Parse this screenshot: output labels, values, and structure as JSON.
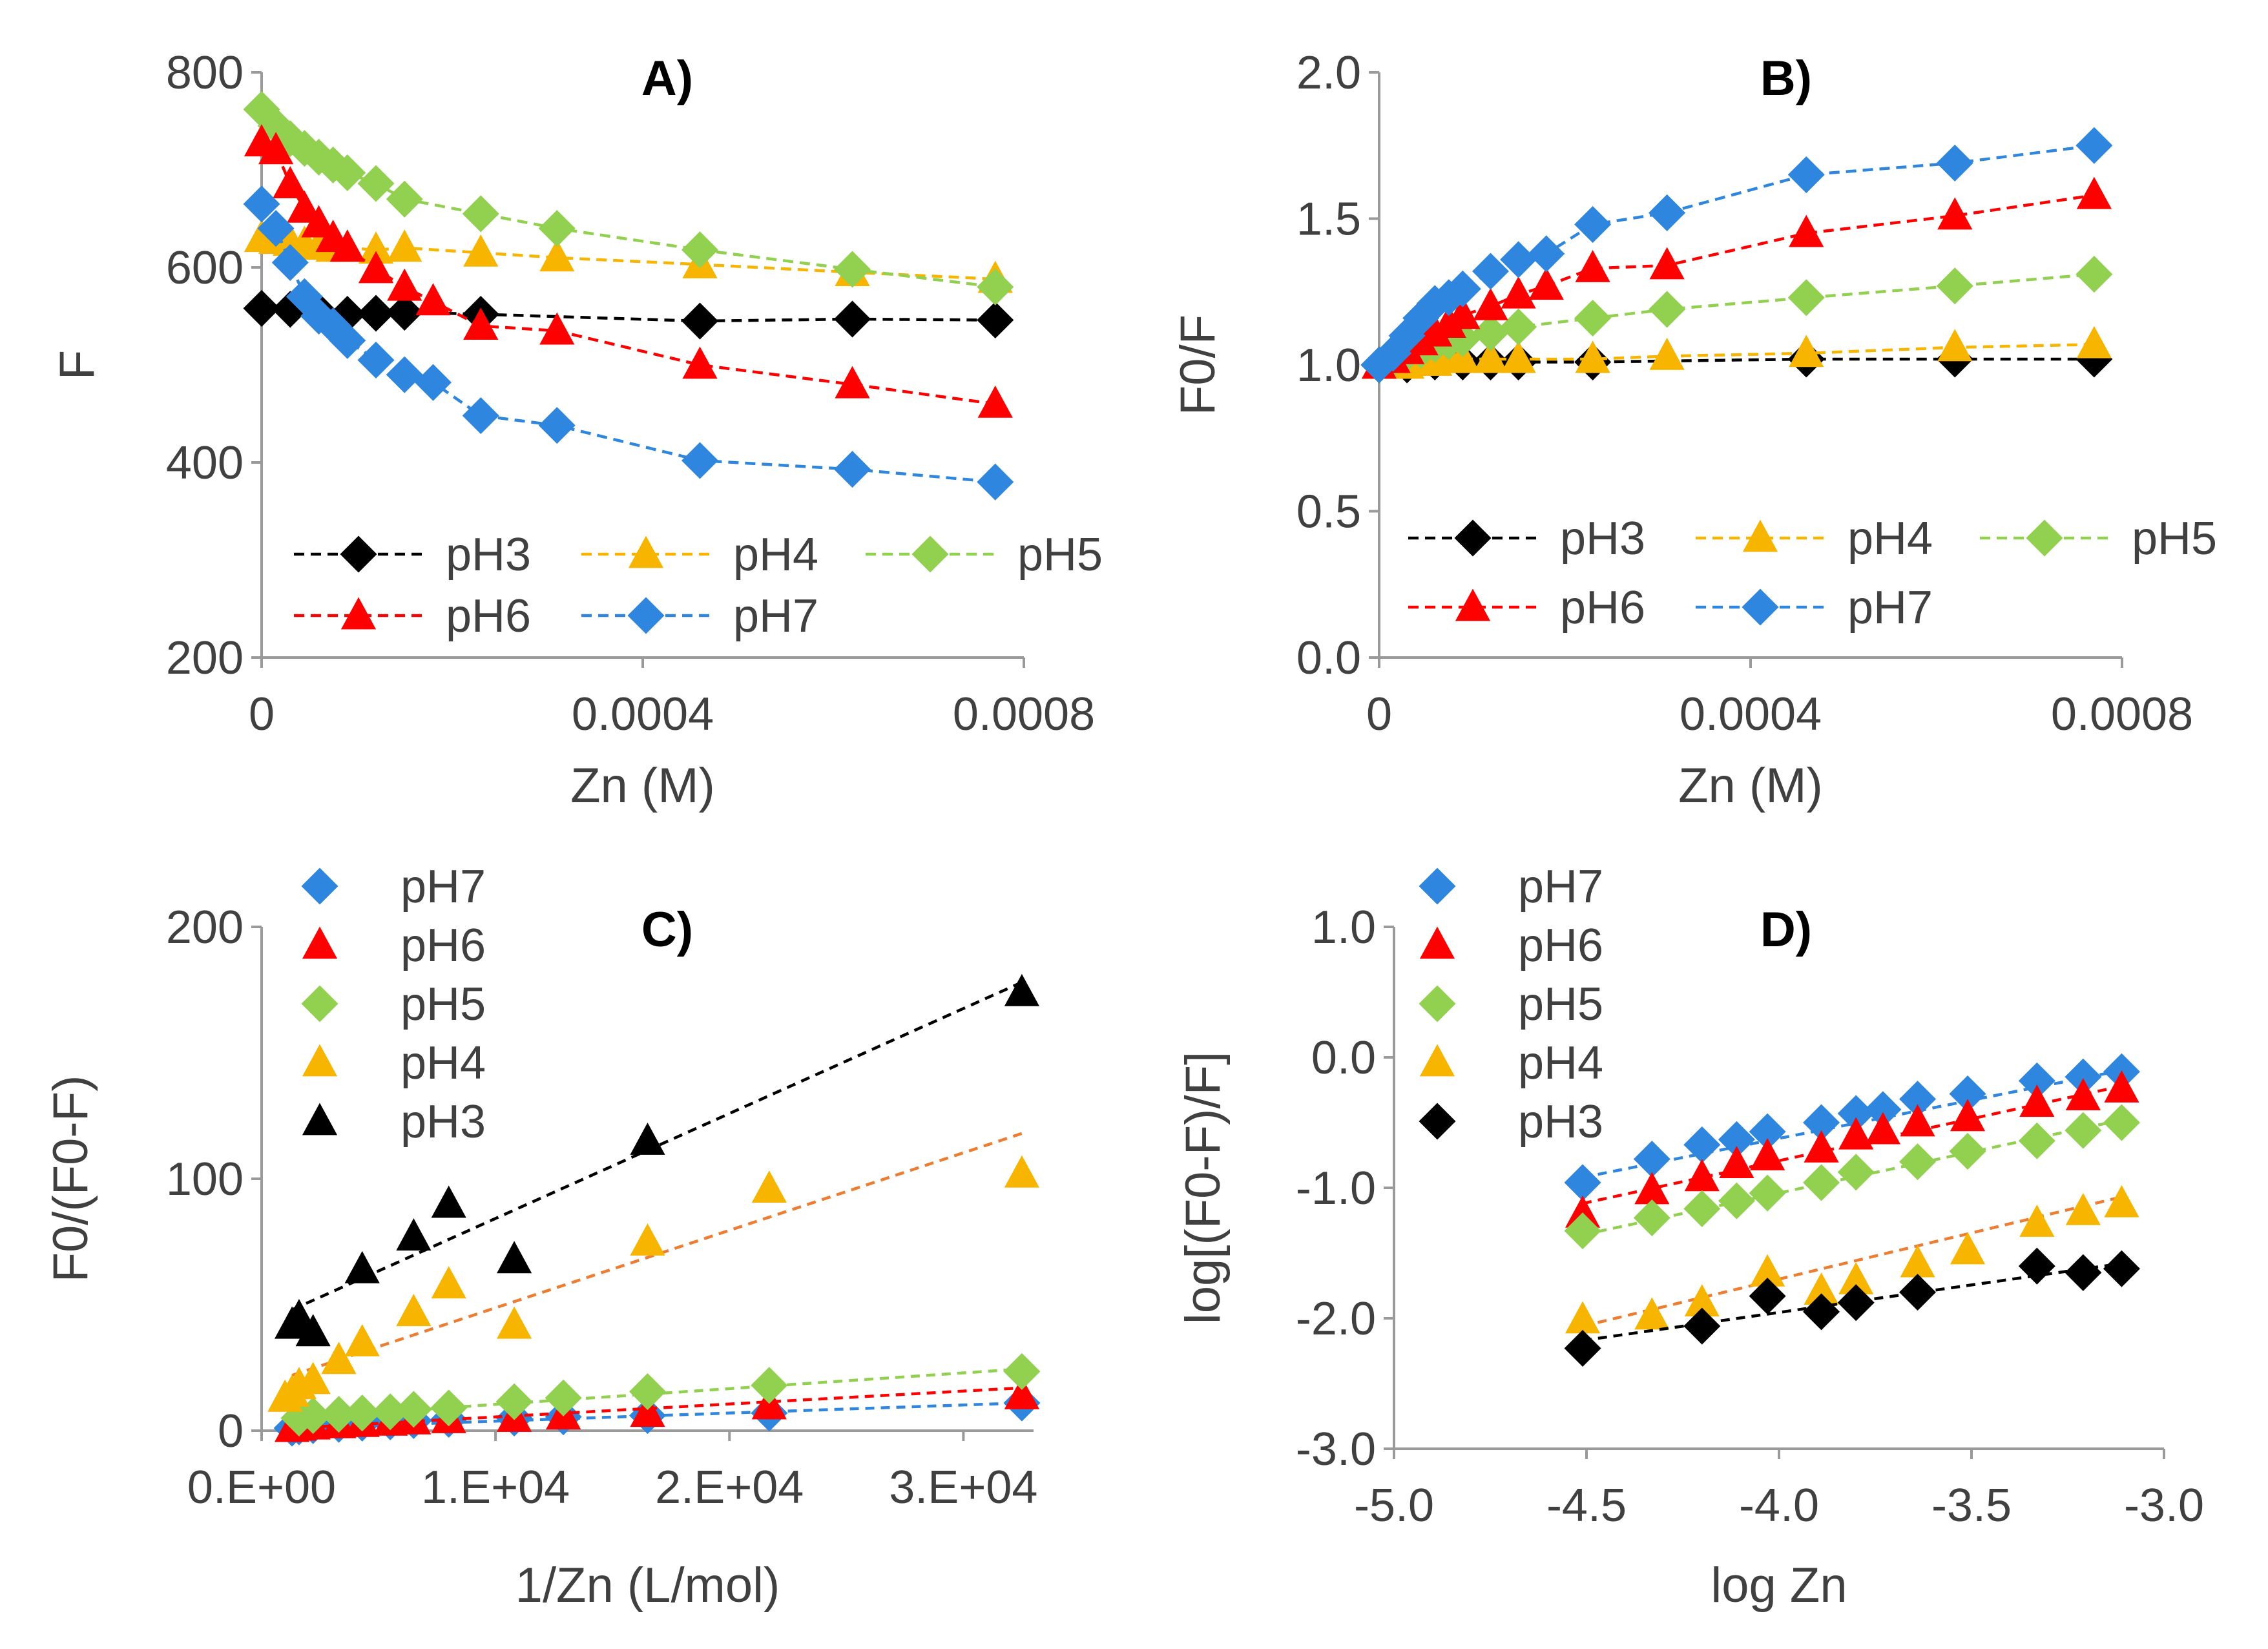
{
  "chart_data": [
    {
      "type": "line",
      "panel_label": "A)",
      "xlabel": "Zn (M)",
      "ylabel": "F",
      "xlim": [
        0,
        0.0008
      ],
      "ylim": [
        200,
        800
      ],
      "xticks": [
        0,
        0.0004,
        0.0008
      ],
      "xtick_labels": [
        "0",
        "0.0004",
        "0.0008"
      ],
      "yticks": [
        200,
        400,
        600,
        800
      ],
      "ytick_labels": [
        "200",
        "400",
        "600",
        "800"
      ],
      "legend_position": "bottom",
      "legend_columns": 3,
      "series": [
        {
          "name": "pH3",
          "color": "#000000",
          "marker": "diamond",
          "x": [
            0,
            3e-05,
            6e-05,
            9e-05,
            0.00012,
            0.00015,
            0.00023,
            0.00046,
            0.00062,
            0.00077
          ],
          "y": [
            558,
            557,
            555,
            552,
            553,
            554,
            552,
            545,
            547,
            546
          ]
        },
        {
          "name": "pH4",
          "color": "#F7B500",
          "marker": "triangle",
          "x": [
            0,
            1.5e-05,
            3e-05,
            4.5e-05,
            6e-05,
            7.5e-05,
            9e-05,
            0.00012,
            0.00015,
            0.00023,
            0.00031,
            0.00046,
            0.00062,
            0.00077
          ],
          "y": [
            630,
            628,
            626,
            624,
            622,
            620,
            620,
            618,
            620,
            615,
            610,
            603,
            595,
            588
          ]
        },
        {
          "name": "pH5",
          "color": "#92D050",
          "marker": "diamond",
          "x": [
            0,
            1.5e-05,
            3e-05,
            4.5e-05,
            6e-05,
            7.5e-05,
            9e-05,
            0.00012,
            0.00015,
            0.00023,
            0.00031,
            0.00046,
            0.00062,
            0.00077
          ],
          "y": [
            762,
            745,
            732,
            722,
            713,
            705,
            697,
            686,
            670,
            655,
            640,
            618,
            598,
            580
          ]
        },
        {
          "name": "pH6",
          "color": "#FF0000",
          "marker": "triangle",
          "x": [
            0,
            1.5e-05,
            3e-05,
            4.5e-05,
            6e-05,
            7.5e-05,
            9e-05,
            0.00012,
            0.00015,
            0.00018,
            0.00023,
            0.00031,
            0.00046,
            0.00062,
            0.00077
          ],
          "y": [
            728,
            720,
            685,
            660,
            645,
            630,
            620,
            598,
            580,
            565,
            540,
            535,
            500,
            480,
            460
          ]
        },
        {
          "name": "pH7",
          "color": "#2E86DE",
          "marker": "diamond",
          "x": [
            0,
            1.5e-05,
            3e-05,
            4.5e-05,
            6e-05,
            7.5e-05,
            9e-05,
            0.00012,
            0.00015,
            0.00018,
            0.00023,
            0.00031,
            0.00046,
            0.00062,
            0.00077
          ],
          "y": [
            665,
            640,
            605,
            570,
            550,
            540,
            525,
            505,
            490,
            482,
            448,
            438,
            402,
            393,
            380
          ]
        }
      ]
    },
    {
      "type": "line",
      "panel_label": "B)",
      "xlabel": "Zn (M)",
      "ylabel": "F0/F",
      "xlim": [
        0,
        0.0008
      ],
      "ylim": [
        0,
        2
      ],
      "xticks": [
        0,
        0.0004,
        0.0008
      ],
      "xtick_labels": [
        "0",
        "0.0004",
        "0.0008"
      ],
      "yticks": [
        0,
        0.5,
        1,
        1.5,
        2
      ],
      "ytick_labels": [
        "0.0",
        "0.5",
        "1.0",
        "1.5",
        "2.0"
      ],
      "legend_position": "bottom",
      "legend_columns": 3,
      "series": [
        {
          "name": "pH3",
          "color": "#000000",
          "marker": "diamond",
          "x": [
            0,
            3e-05,
            6e-05,
            9e-05,
            0.00012,
            0.00015,
            0.00023,
            0.00046,
            0.00062,
            0.00077
          ],
          "y": [
            1.0,
            1.0,
            1.01,
            1.01,
            1.01,
            1.01,
            1.01,
            1.02,
            1.02,
            1.02
          ]
        },
        {
          "name": "pH4",
          "color": "#F7B500",
          "marker": "triangle",
          "x": [
            0,
            1.5e-05,
            3e-05,
            4.5e-05,
            6e-05,
            7.5e-05,
            9e-05,
            0.00012,
            0.00015,
            0.00023,
            0.00031,
            0.00046,
            0.00062,
            0.00077
          ],
          "y": [
            1.0,
            1.0,
            1.0,
            1.01,
            1.01,
            1.02,
            1.02,
            1.02,
            1.02,
            1.02,
            1.03,
            1.04,
            1.06,
            1.07
          ]
        },
        {
          "name": "pH5",
          "color": "#92D050",
          "marker": "diamond",
          "x": [
            0,
            1.5e-05,
            3e-05,
            4.5e-05,
            6e-05,
            7.5e-05,
            9e-05,
            0.00012,
            0.00015,
            0.00023,
            0.00031,
            0.00046,
            0.00062,
            0.00077
          ],
          "y": [
            1.0,
            1.02,
            1.04,
            1.05,
            1.07,
            1.08,
            1.09,
            1.11,
            1.13,
            1.16,
            1.19,
            1.23,
            1.27,
            1.31
          ]
        },
        {
          "name": "pH6",
          "color": "#FF0000",
          "marker": "triangle",
          "x": [
            0,
            1.5e-05,
            3e-05,
            4.5e-05,
            6e-05,
            7.5e-05,
            9e-05,
            0.00012,
            0.00015,
            0.00018,
            0.00023,
            0.00031,
            0.00046,
            0.00062,
            0.00077
          ],
          "y": [
            1.0,
            1.02,
            1.05,
            1.08,
            1.11,
            1.14,
            1.17,
            1.2,
            1.24,
            1.27,
            1.33,
            1.34,
            1.45,
            1.51,
            1.58
          ]
        },
        {
          "name": "pH7",
          "color": "#2E86DE",
          "marker": "diamond",
          "x": [
            0,
            1.5e-05,
            3e-05,
            4.5e-05,
            6e-05,
            7.5e-05,
            9e-05,
            0.00012,
            0.00015,
            0.00018,
            0.00023,
            0.00031,
            0.00046,
            0.00062,
            0.00077
          ],
          "y": [
            1.0,
            1.04,
            1.1,
            1.16,
            1.21,
            1.23,
            1.26,
            1.32,
            1.36,
            1.38,
            1.48,
            1.52,
            1.65,
            1.69,
            1.75
          ]
        }
      ]
    },
    {
      "type": "scatter",
      "panel_label": "C)",
      "xlabel": "1/Zn (L/mol)",
      "ylabel": "F0/(F0-F)",
      "xlim": [
        0,
        33000
      ],
      "ylim": [
        0,
        200
      ],
      "xticks": [
        0,
        10000,
        20000,
        30000
      ],
      "xtick_labels": [
        "0.E+00",
        "1.E+04",
        "2.E+04",
        "3.E+04"
      ],
      "yticks": [
        0,
        100,
        200
      ],
      "ytick_labels": [
        "0",
        "100",
        "200"
      ],
      "legend_position": "top-left",
      "legend_columns": 1,
      "series": [
        {
          "name": "pH7",
          "color": "#2E86DE",
          "marker": "diamond",
          "x": [
            1300,
            1600,
            2200,
            3300,
            4300,
            5500,
            6500,
            8000,
            10800,
            12900,
            16500,
            21700,
            32500
          ],
          "y": [
            1,
            1.5,
            2,
            2.5,
            3,
            3.5,
            4,
            4.5,
            5,
            5.5,
            6,
            7,
            11
          ],
          "trend": [
            [
              1300,
              1
            ],
            [
              32500,
              11
            ]
          ]
        },
        {
          "name": "pH6",
          "color": "#FF0000",
          "marker": "triangle",
          "x": [
            1300,
            1600,
            2200,
            3300,
            4300,
            5500,
            6500,
            8000,
            10800,
            12900,
            16500,
            21700,
            32500
          ],
          "y": [
            1,
            1.5,
            2,
            2.5,
            3,
            3.5,
            4,
            4.5,
            5,
            6,
            7,
            10,
            14
          ],
          "trend": [
            [
              1300,
              1
            ],
            [
              32500,
              17
            ]
          ]
        },
        {
          "name": "pH5",
          "color": "#92D050",
          "marker": "diamond",
          "x": [
            1600,
            2200,
            3300,
            4300,
            5500,
            6500,
            8000,
            10800,
            12900,
            16500,
            21700,
            32500
          ],
          "y": [
            5,
            6,
            6.5,
            7,
            7.5,
            8.5,
            9,
            11.5,
            13,
            15.5,
            18,
            23.5
          ],
          "trend": [
            [
              1300,
              5
            ],
            [
              32500,
              24.5
            ]
          ]
        },
        {
          "name": "pH4",
          "color": "#F7B500",
          "marker": "triangle",
          "x": [
            1000,
            1300,
            1600,
            2200,
            3300,
            4300,
            6500,
            8000,
            10800,
            16500,
            21700,
            32500
          ],
          "y": [
            13,
            15,
            18,
            20,
            28,
            35,
            47,
            58,
            42,
            75,
            96,
            102
          ],
          "trend": [
            [
              1300,
              22
            ],
            [
              32500,
              118
            ]
          ]
        },
        {
          "name": "pH3",
          "color": "#000000",
          "marker": "triangle",
          "x": [
            1300,
            1600,
            2200,
            4300,
            6500,
            8000,
            10800,
            16500,
            32500
          ],
          "y": [
            42,
            45,
            39,
            64,
            77,
            90,
            68,
            115,
            174
          ],
          "trend": [
            [
              1300,
              48
            ],
            [
              32500,
              178
            ]
          ]
        }
      ]
    },
    {
      "type": "scatter",
      "panel_label": "D)",
      "xlabel": "log Zn",
      "ylabel": "log[(F0-F)/F]",
      "xlim": [
        -5.0,
        -3.0
      ],
      "ylim": [
        -3.0,
        1.0
      ],
      "xticks": [
        -5.0,
        -4.5,
        -4.0,
        -3.5,
        -3.0
      ],
      "xtick_labels": [
        "-5.0",
        "-4.5",
        "-4.0",
        "-3.5",
        "-3.0"
      ],
      "yticks": [
        -3.0,
        -2.0,
        -1.0,
        0.0,
        1.0
      ],
      "ytick_labels": [
        "-3.0",
        "-2.0",
        "-1.0",
        "0.0",
        "1.0"
      ],
      "legend_position": "top-left",
      "legend_columns": 1,
      "series": [
        {
          "name": "pH7",
          "color": "#2E86DE",
          "marker": "diamond",
          "x": [
            -4.51,
            -4.33,
            -4.2,
            -4.11,
            -4.03,
            -3.89,
            -3.8,
            -3.73,
            -3.64,
            -3.51,
            -3.33,
            -3.21,
            -3.11
          ],
          "y": [
            -0.96,
            -0.78,
            -0.67,
            -0.63,
            -0.57,
            -0.5,
            -0.43,
            -0.4,
            -0.32,
            -0.28,
            -0.18,
            -0.15,
            -0.11
          ],
          "trend": [
            [
              -4.51,
              -0.92
            ],
            [
              -3.11,
              -0.1
            ]
          ]
        },
        {
          "name": "pH6",
          "color": "#FF0000",
          "marker": "triangle",
          "x": [
            -4.51,
            -4.33,
            -4.2,
            -4.11,
            -4.03,
            -3.89,
            -3.8,
            -3.73,
            -3.64,
            -3.51,
            -3.33,
            -3.21,
            -3.11
          ],
          "y": [
            -1.2,
            -1.02,
            -0.92,
            -0.82,
            -0.76,
            -0.7,
            -0.6,
            -0.56,
            -0.5,
            -0.46,
            -0.35,
            -0.3,
            -0.24
          ],
          "trend": [
            [
              -4.51,
              -1.12
            ],
            [
              -3.11,
              -0.22
            ]
          ]
        },
        {
          "name": "pH5",
          "color": "#92D050",
          "marker": "diamond",
          "x": [
            -4.51,
            -4.33,
            -4.2,
            -4.11,
            -4.03,
            -3.89,
            -3.8,
            -3.64,
            -3.51,
            -3.33,
            -3.21,
            -3.11
          ],
          "y": [
            -1.33,
            -1.23,
            -1.16,
            -1.1,
            -1.04,
            -0.96,
            -0.88,
            -0.8,
            -0.72,
            -0.64,
            -0.56,
            -0.5
          ],
          "trend": [
            [
              -4.51,
              -1.36
            ],
            [
              -3.11,
              -0.48
            ]
          ]
        },
        {
          "name": "pH4",
          "color": "#F7B500",
          "marker": "triangle",
          "x": [
            -4.51,
            -4.33,
            -4.2,
            -4.03,
            -3.89,
            -3.8,
            -3.64,
            -3.51,
            -3.33,
            -3.21,
            -3.11
          ],
          "y": [
            -2.01,
            -1.98,
            -1.88,
            -1.65,
            -1.79,
            -1.71,
            -1.58,
            -1.48,
            -1.27,
            -1.18,
            -1.12
          ],
          "trend": [
            [
              -4.51,
              -2.06
            ],
            [
              -3.11,
              -1.07
            ]
          ]
        },
        {
          "name": "pH3",
          "color": "#000000",
          "marker": "diamond",
          "x": [
            -4.51,
            -4.2,
            -4.03,
            -3.89,
            -3.8,
            -3.64,
            -3.33,
            -3.21,
            -3.11
          ],
          "y": [
            -2.23,
            -2.06,
            -1.83,
            -1.95,
            -1.88,
            -1.8,
            -1.6,
            -1.65,
            -1.62
          ],
          "trend": [
            [
              -4.51,
              -2.17
            ],
            [
              -3.11,
              -1.58
            ]
          ]
        }
      ]
    }
  ]
}
